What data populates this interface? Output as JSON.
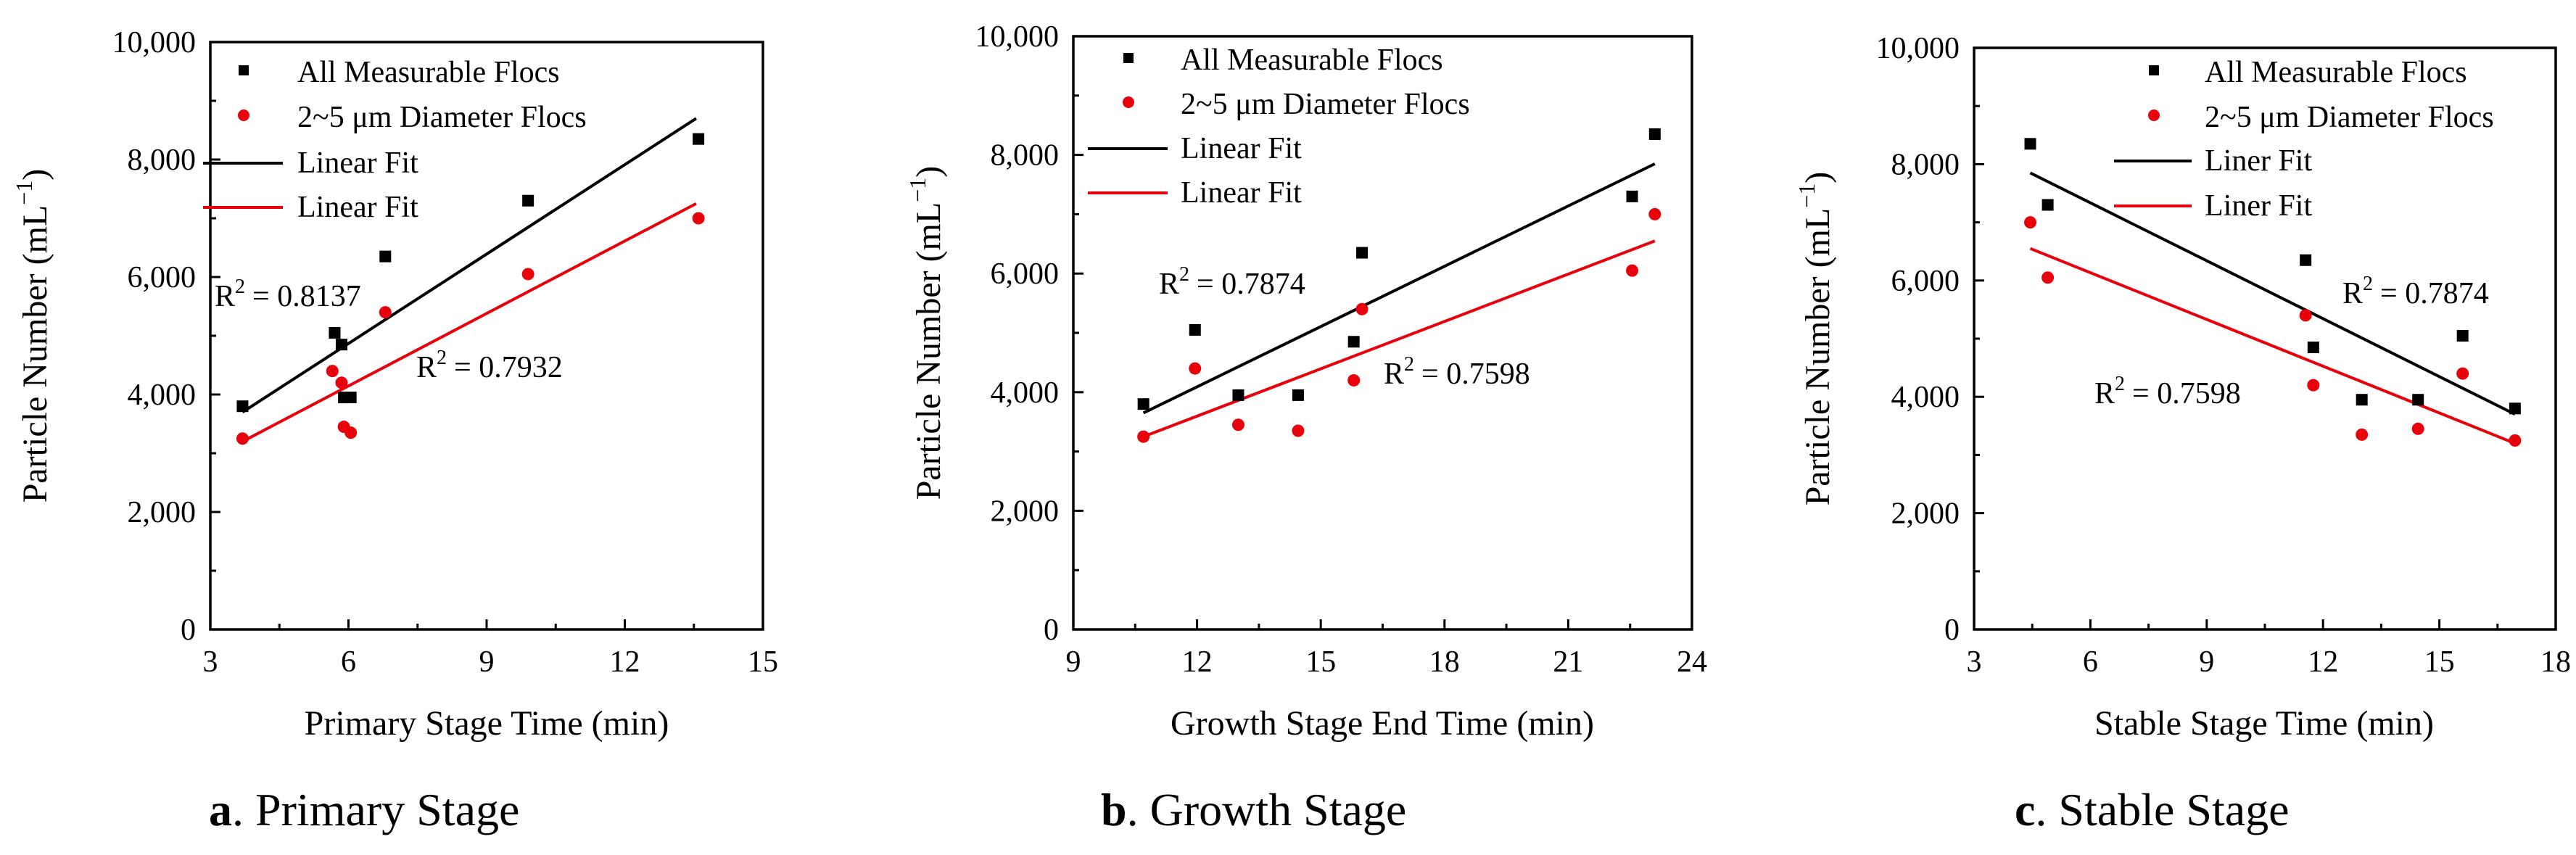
{
  "colors": {
    "black": "#000000",
    "red": "#e8000b"
  },
  "chart_data": [
    {
      "type": "scatter",
      "caption_letter": "a",
      "caption_text": ". Primary Stage",
      "xlabel": "Primary Stage Time (min)",
      "ylabel": "Particle Number (mL",
      "ylabel_sup": "−1",
      "ylabel_close": ")",
      "xlim": [
        3,
        15
      ],
      "ylim": [
        0,
        10000
      ],
      "xticks": [
        "3",
        "6",
        "9",
        "12",
        "15"
      ],
      "yticks": [
        "0",
        "2,000",
        "4,000",
        "6,000",
        "8,000",
        "10,000"
      ],
      "legend": [
        "All Measurable Flocs",
        "2~5 μm Diameter Flocs",
        "Linear Fit",
        "Linear Fit"
      ],
      "r2_labels": [
        "R",
        "R"
      ],
      "r2_values": [
        "= 0.8137",
        "= 0.7932"
      ],
      "r2_sup": "2",
      "series": [
        {
          "name": "All Measurable Flocs",
          "color": "#000000",
          "marker": "square",
          "x": [
            3.7,
            5.7,
            5.85,
            5.9,
            6.05,
            6.8,
            9.9,
            13.6
          ],
          "y": [
            3800,
            5050,
            4850,
            3950,
            3950,
            6350,
            7300,
            8350
          ],
          "fit": [
            [
              3.7,
              3700
            ],
            [
              13.55,
              8700
            ]
          ]
        },
        {
          "name": "2~5 μm Diameter Flocs",
          "color": "#e8000b",
          "marker": "circle",
          "x": [
            3.7,
            5.65,
            5.85,
            5.9,
            6.05,
            6.8,
            9.9,
            13.6
          ],
          "y": [
            3250,
            4400,
            4200,
            3450,
            3350,
            5400,
            6050,
            7000
          ],
          "fit": [
            [
              3.7,
              3200
            ],
            [
              13.55,
              7250
            ]
          ]
        }
      ]
    },
    {
      "type": "scatter",
      "caption_letter": "b",
      "caption_text": ". Growth Stage",
      "xlabel": "Growth Stage End Time (min)",
      "ylabel": "Particle Number (mL",
      "ylabel_sup": "−1",
      "ylabel_close": ")",
      "xlim": [
        9,
        24
      ],
      "ylim": [
        0,
        10000
      ],
      "xticks": [
        "9",
        "12",
        "15",
        "18",
        "21",
        "24"
      ],
      "yticks": [
        "0",
        "2,000",
        "4,000",
        "6,000",
        "8,000",
        "10,000"
      ],
      "legend": [
        "All Measurable Flocs",
        "2~5 μm Diameter Flocs",
        "Linear Fit",
        "Linear Fit"
      ],
      "r2_labels": [
        "R",
        "R"
      ],
      "r2_values": [
        "= 0.7874",
        "= 0.7598"
      ],
      "r2_sup": "2",
      "series": [
        {
          "name": "All Measurable Flocs",
          "color": "#000000",
          "marker": "square",
          "x": [
            10.7,
            11.95,
            13.0,
            14.45,
            15.8,
            16.0,
            22.55,
            23.1
          ],
          "y": [
            3800,
            5050,
            3950,
            3950,
            4850,
            6350,
            7300,
            8350
          ],
          "fit": [
            [
              10.7,
              3650
            ],
            [
              23.1,
              7850
            ]
          ]
        },
        {
          "name": "2~5 μm Diameter Flocs",
          "color": "#e8000b",
          "marker": "circle",
          "x": [
            10.7,
            11.95,
            13.0,
            14.45,
            15.8,
            16.0,
            22.55,
            23.1
          ],
          "y": [
            3250,
            4400,
            3450,
            3350,
            4200,
            5400,
            6050,
            7000
          ],
          "fit": [
            [
              10.7,
              3250
            ],
            [
              23.1,
              6550
            ]
          ]
        }
      ]
    },
    {
      "type": "scatter",
      "caption_letter": "c",
      "caption_text": ". Stable Stage",
      "xlabel": "Stable Stage Time (min)",
      "ylabel": "Particle Number (mL",
      "ylabel_sup": "−1",
      "ylabel_close": ")",
      "xlim": [
        3,
        18
      ],
      "ylim": [
        0,
        10000
      ],
      "xticks": [
        "3",
        "6",
        "9",
        "12",
        "15",
        "18"
      ],
      "yticks": [
        "0",
        "2,000",
        "4,000",
        "6,000",
        "8,000",
        "10,000"
      ],
      "legend": [
        "All Measurable Flocs",
        "2~5 μm Diameter Flocs",
        "Liner Fit",
        "Liner Fit"
      ],
      "r2_labels": [
        "R",
        "R"
      ],
      "r2_values": [
        "= 0.7874",
        "= 0.7598"
      ],
      "r2_sup": "2",
      "series": [
        {
          "name": "All Measurable Flocs",
          "color": "#000000",
          "marker": "square",
          "x": [
            4.45,
            4.9,
            11.55,
            11.75,
            13.0,
            14.45,
            15.6,
            16.95
          ],
          "y": [
            8350,
            7300,
            6350,
            4850,
            3950,
            3950,
            5050,
            3800
          ],
          "fit": [
            [
              4.45,
              7850
            ],
            [
              16.95,
              3700
            ]
          ]
        },
        {
          "name": "2~5 μm Diameter Flocs",
          "color": "#e8000b",
          "marker": "circle",
          "x": [
            4.45,
            4.9,
            11.55,
            11.75,
            13.0,
            14.45,
            15.6,
            16.95
          ],
          "y": [
            7000,
            6050,
            5400,
            4200,
            3350,
            3450,
            4400,
            3250
          ],
          "fit": [
            [
              4.45,
              6550
            ],
            [
              16.95,
              3200
            ]
          ]
        }
      ]
    }
  ]
}
